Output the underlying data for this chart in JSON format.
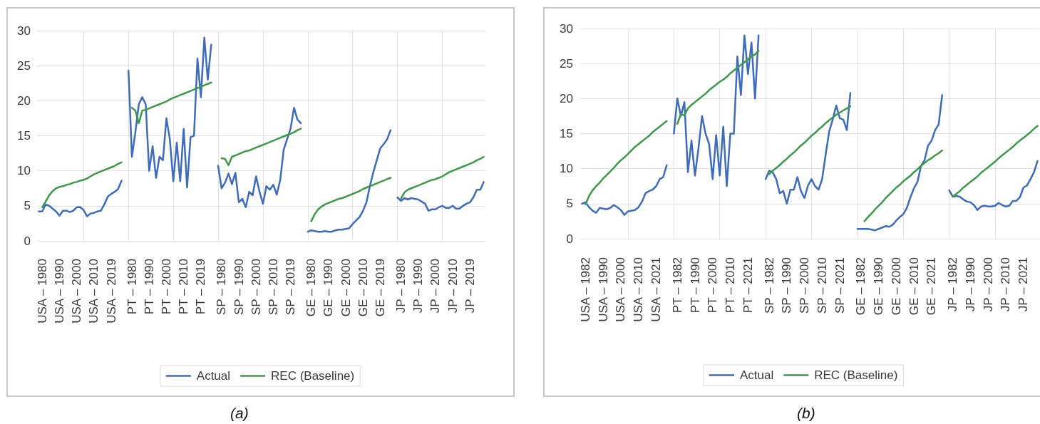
{
  "chart_data": [
    {
      "type": "line",
      "title": "(a)",
      "categories": [
        null,
        "USA – 1980",
        null,
        null,
        null,
        null,
        "USA – 1990",
        null,
        null,
        null,
        null,
        "USA – 2000",
        null,
        null,
        null,
        null,
        "USA – 2010",
        null,
        null,
        null,
        null,
        "USA – 2019",
        null,
        null,
        null,
        null,
        null,
        "PT – 1980",
        null,
        null,
        null,
        null,
        "PT – 1990",
        null,
        null,
        null,
        null,
        "PT – 2000",
        null,
        null,
        null,
        null,
        "PT – 2010",
        null,
        null,
        null,
        null,
        "PT – 2019",
        null,
        null,
        null,
        null,
        null,
        "SP – 1980",
        null,
        null,
        null,
        null,
        "SP – 1990",
        null,
        null,
        null,
        null,
        "SP – 2000",
        null,
        null,
        null,
        null,
        "SP – 2010",
        null,
        null,
        null,
        null,
        "SP – 2019",
        null,
        null,
        null,
        null,
        null,
        "GE – 1980",
        null,
        null,
        null,
        null,
        "GE – 1990",
        null,
        null,
        null,
        null,
        "GE – 2000",
        null,
        null,
        null,
        null,
        "GE – 2010",
        null,
        null,
        null,
        null,
        "GE – 2019",
        null,
        null,
        null,
        null,
        null,
        "JP – 1980",
        null,
        null,
        null,
        null,
        "JP – 1990",
        null,
        null,
        null,
        null,
        "JP – 2000",
        null,
        null,
        null,
        null,
        "JP – 2010",
        null,
        null,
        null,
        null,
        "JP – 2019",
        null,
        null,
        null,
        null
      ],
      "series": [
        {
          "name": "Actual",
          "color": "#3d6cbf",
          "values": [
            4.2,
            4.2,
            5.2,
            5.0,
            4.6,
            4.2,
            3.6,
            4.3,
            4.3,
            4.1,
            4.3,
            4.8,
            4.8,
            4.4,
            3.5,
            3.9,
            4.0,
            4.2,
            4.3,
            5.2,
            6.3,
            6.7,
            7.0,
            7.4,
            8.6,
            null,
            24.3,
            12,
            15.5,
            19.5,
            20.5,
            19.5,
            10,
            13.5,
            9,
            12,
            11.5,
            17.5,
            14.5,
            8.5,
            14,
            8.5,
            16,
            7.6,
            14.8,
            15,
            26,
            20.5,
            29,
            23,
            28,
            null,
            10.7,
            7.5,
            8.3,
            9.6,
            8.1,
            9.7,
            5.5,
            6.0,
            4.8,
            7.0,
            6.5,
            9.2,
            7.0,
            5.3,
            7.8,
            7.3,
            8.0,
            6.6,
            8.7,
            13.0,
            14.5,
            16.0,
            19.0,
            17.3,
            16.8,
            null,
            1.3,
            1.5,
            1.4,
            1.3,
            1.3,
            1.4,
            1.3,
            1.3,
            1.5,
            1.6,
            1.6,
            1.7,
            1.8,
            2.4,
            2.9,
            3.4,
            4.3,
            5.5,
            7.8,
            9.8,
            11.5,
            13.2,
            13.8,
            14.5,
            15.8,
            null,
            6.2,
            5.7,
            6.1,
            5.9,
            6.1,
            6.0,
            5.9,
            5.6,
            5.3,
            4.3,
            4.5,
            4.5,
            4.8,
            5.0,
            4.7,
            4.7,
            5.0,
            4.6,
            4.6,
            5.0,
            5.3,
            5.5,
            6.2,
            7.3,
            7.3,
            8.4
          ]
        },
        {
          "name": "REC (Baseline)",
          "color": "#3c9a48",
          "values": [
            null,
            4.8,
            5.6,
            6.5,
            7.1,
            7.5,
            7.7,
            7.8,
            8.0,
            8.1,
            8.3,
            8.4,
            8.6,
            8.7,
            8.9,
            9.2,
            9.5,
            9.7,
            9.9,
            10.1,
            10.3,
            10.5,
            10.7,
            11.0,
            11.2,
            null,
            null,
            19.0,
            18.6,
            16.8,
            18.6,
            18.7,
            18.9,
            19.1,
            19.3,
            19.5,
            19.7,
            19.9,
            20.2,
            20.4,
            20.6,
            20.8,
            21.0,
            21.2,
            21.4,
            21.6,
            21.8,
            22.0,
            22.2,
            22.4,
            22.6,
            null,
            null,
            11.8,
            11.7,
            10.8,
            12.0,
            12.2,
            12.4,
            12.6,
            12.8,
            12.9,
            13.1,
            13.3,
            13.5,
            13.7,
            13.9,
            14.1,
            14.3,
            14.5,
            14.7,
            14.9,
            15.1,
            15.3,
            15.5,
            15.8,
            16.0,
            null,
            null,
            2.8,
            3.8,
            4.5,
            4.9,
            5.2,
            5.4,
            5.6,
            5.8,
            6.0,
            6.1,
            6.3,
            6.5,
            6.7,
            6.9,
            7.1,
            7.4,
            7.6,
            7.8,
            8.0,
            8.2,
            8.4,
            8.6,
            8.8,
            9.0,
            null,
            null,
            6.0,
            6.9,
            7.3,
            7.5,
            7.7,
            7.9,
            8.1,
            8.3,
            8.5,
            8.7,
            8.8,
            9.0,
            9.2,
            9.5,
            9.8,
            10.0,
            10.2,
            10.4,
            10.6,
            10.8,
            11.0,
            11.2,
            11.5,
            11.7,
            12.0
          ]
        }
      ],
      "ylim": [
        0,
        30
      ],
      "yticks": [
        0,
        5,
        10,
        15,
        20,
        25,
        30
      ],
      "grid": true,
      "legend": "bottom",
      "marker": "none"
    },
    {
      "type": "line",
      "title": "(b)",
      "categories": [
        null,
        "USA – 1982",
        null,
        null,
        null,
        null,
        "USA – 1990",
        null,
        null,
        null,
        null,
        "USA – 2000",
        null,
        null,
        null,
        null,
        "USA – 2010",
        null,
        null,
        null,
        null,
        "USA – 2021",
        null,
        null,
        null,
        null,
        null,
        "PT – 1982",
        null,
        null,
        null,
        null,
        "PT – 1990",
        null,
        null,
        null,
        null,
        "PT – 2000",
        null,
        null,
        null,
        null,
        "PT – 2010",
        null,
        null,
        null,
        null,
        "PT – 2021",
        null,
        null,
        null,
        null,
        null,
        "SP – 1982",
        null,
        null,
        null,
        null,
        "SP – 1990",
        null,
        null,
        null,
        null,
        "SP – 2000",
        null,
        null,
        null,
        null,
        "SP – 2010",
        null,
        null,
        null,
        null,
        "SP – 2021",
        null,
        null,
        null,
        null,
        null,
        "GE – 1982",
        null,
        null,
        null,
        null,
        "GE – 1990",
        null,
        null,
        null,
        null,
        "GE – 2000",
        null,
        null,
        null,
        null,
        "GE – 2010",
        null,
        null,
        null,
        null,
        "GE – 2021",
        null,
        null,
        null,
        null,
        null,
        "JP – 1982",
        null,
        null,
        null,
        null,
        "JP – 1990",
        null,
        null,
        null,
        null,
        "JP – 2000",
        null,
        null,
        null,
        null,
        "JP – 2010",
        null,
        null,
        null,
        null,
        "JP – 2021",
        null,
        null,
        null,
        null
      ],
      "series": [
        {
          "name": "Actual",
          "color": "#3d6cbf",
          "values": [
            5.0,
            5.2,
            4.5,
            4.0,
            3.7,
            4.4,
            4.3,
            4.2,
            4.4,
            4.8,
            4.5,
            4.1,
            3.4,
            3.9,
            4.0,
            4.1,
            4.5,
            5.3,
            6.5,
            6.8,
            7.0,
            7.5,
            8.5,
            8.8,
            10.5,
            null,
            15,
            20,
            17.5,
            19.5,
            9.5,
            14,
            9,
            13,
            17.5,
            15,
            13.5,
            8.5,
            14.8,
            9,
            16,
            7.5,
            15,
            15,
            26,
            20.5,
            29,
            23.5,
            28,
            20,
            29,
            null,
            8.5,
            9.7,
            9.5,
            8.5,
            6.5,
            6.8,
            5.0,
            7.0,
            7.0,
            8.8,
            6.8,
            5.8,
            7.6,
            8.5,
            7.5,
            7.0,
            8.5,
            12.0,
            15.3,
            17.0,
            19.0,
            17.2,
            17.0,
            15.5,
            20.8,
            null,
            1.4,
            1.4,
            1.4,
            1.4,
            1.3,
            1.2,
            1.4,
            1.6,
            1.8,
            1.7,
            2.0,
            2.6,
            3.1,
            3.5,
            4.4,
            5.9,
            7.2,
            8.1,
            10.4,
            11.2,
            13.3,
            14.0,
            15.5,
            16.3,
            20.5,
            null,
            6.9,
            6.0,
            6.1,
            6.0,
            5.6,
            5.3,
            5.2,
            4.8,
            4.1,
            4.6,
            4.7,
            4.6,
            4.6,
            4.7,
            5.1,
            4.8,
            4.6,
            4.7,
            5.4,
            5.4,
            5.9,
            7.3,
            7.6,
            8.5,
            9.5,
            11.1
          ]
        },
        {
          "name": "REC (Baseline)",
          "color": "#3c9a48",
          "values": [
            null,
            4.9,
            6.1,
            6.9,
            7.5,
            8.0,
            8.6,
            9.1,
            9.6,
            10.1,
            10.7,
            11.2,
            11.6,
            12.1,
            12.6,
            13.1,
            13.5,
            13.9,
            14.3,
            14.7,
            15.2,
            15.6,
            16.0,
            16.4,
            16.8,
            null,
            null,
            16.4,
            17.8,
            17.6,
            18.6,
            19.1,
            19.5,
            19.9,
            20.3,
            20.7,
            21.2,
            21.6,
            22.0,
            22.4,
            22.7,
            23.1,
            23.6,
            24.0,
            24.4,
            24.8,
            25.2,
            25.6,
            26.0,
            26.3,
            26.8,
            null,
            null,
            9.2,
            9.7,
            10.1,
            10.5,
            11.0,
            11.4,
            11.9,
            12.3,
            12.8,
            13.3,
            13.7,
            14.2,
            14.7,
            15.1,
            15.6,
            16.0,
            16.5,
            16.9,
            17.3,
            17.7,
            18.0,
            18.3,
            18.6,
            18.9,
            null,
            null,
            null,
            2.5,
            3.1,
            3.6,
            4.2,
            4.7,
            5.2,
            5.8,
            6.3,
            6.8,
            7.3,
            7.7,
            8.2,
            8.6,
            9.0,
            9.5,
            9.9,
            10.4,
            10.8,
            11.2,
            11.5,
            11.9,
            12.2,
            12.6,
            null,
            null,
            6.0,
            6.4,
            6.8,
            7.3,
            7.7,
            8.1,
            8.5,
            8.9,
            9.4,
            9.8,
            10.2,
            10.6,
            11.0,
            11.5,
            11.9,
            12.3,
            12.7,
            13.1,
            13.6,
            14.0,
            14.4,
            14.8,
            15.2,
            15.7,
            16.1
          ]
        }
      ],
      "ylim": [
        0,
        30
      ],
      "yticks": [
        0,
        5,
        10,
        15,
        20,
        25,
        30
      ],
      "grid": true,
      "legend": "bottom",
      "marker": "none"
    }
  ]
}
